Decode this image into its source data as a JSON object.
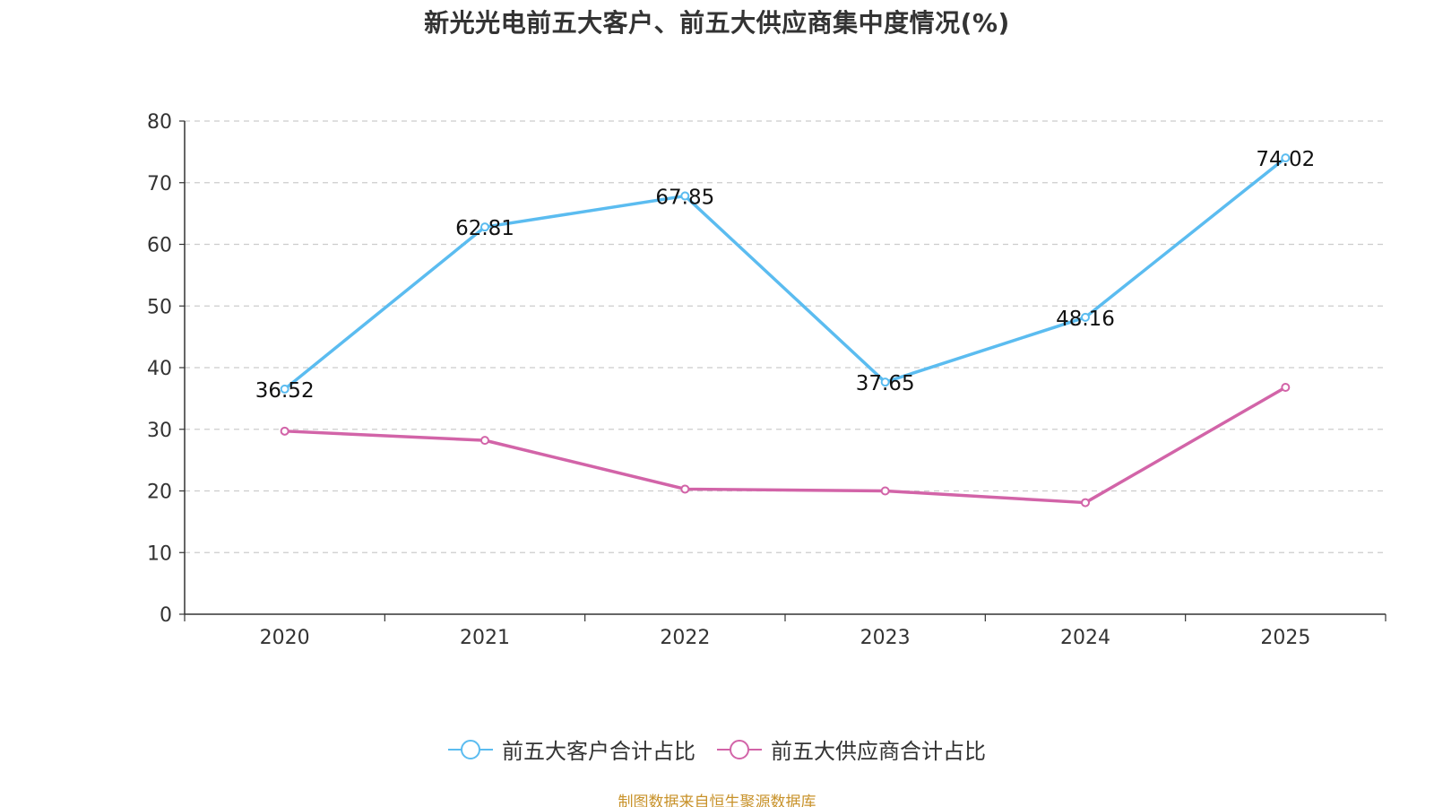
{
  "chart_data": {
    "type": "line",
    "title": "新光光电前五大客户、前五大供应商集中度情况(%)",
    "categories": [
      "2020",
      "2021",
      "2022",
      "2023",
      "2024",
      "2025"
    ],
    "ylim": [
      0,
      80
    ],
    "yticks": [
      0,
      10,
      20,
      30,
      40,
      50,
      60,
      70,
      80
    ],
    "grid": true,
    "legend_position": "bottom-center",
    "series": [
      {
        "name": "前五大客户合计占比",
        "color": "#5bbcf0",
        "values": [
          36.52,
          62.81,
          67.85,
          37.65,
          48.16,
          74.02
        ],
        "data_labels": [
          "36.52",
          "62.81",
          "67.85",
          "37.65",
          "48.16",
          "74.02"
        ]
      },
      {
        "name": "前五大供应商合计占比",
        "color": "#d264a8",
        "values": [
          29.7,
          28.2,
          20.3,
          20.0,
          18.1,
          36.8
        ],
        "data_labels": []
      }
    ]
  },
  "source_text": "制图数据来自恒生聚源数据库"
}
